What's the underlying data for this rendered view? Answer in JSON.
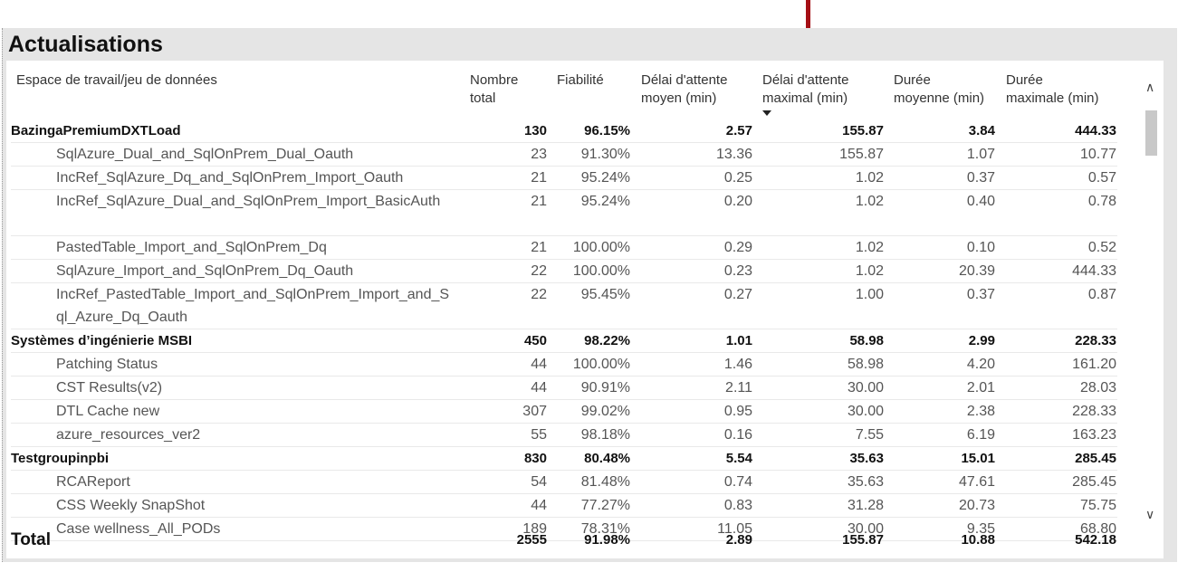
{
  "title": "Actualisations",
  "columns": {
    "name": "Espace de travail/jeu de données",
    "total_line1": "Nombre",
    "total_line2": "total",
    "reliability": "Fiabilité",
    "avg_wait_line1": "Délai d'attente",
    "avg_wait_line2": "moyen (min)",
    "max_wait_line1": "Délai d'attente",
    "max_wait_line2": "maximal (min)",
    "avg_dur_line1": "Durée",
    "avg_dur_line2": "moyenne (min)",
    "max_dur_line1": "Durée",
    "max_dur_line2": "maximale (min)"
  },
  "rows": [
    {
      "type": "group",
      "name": "BazingaPremiumDXTLoad",
      "total": "130",
      "reliability": "96.15%",
      "avg_wait": "2.57",
      "max_wait": "155.87",
      "avg_dur": "3.84",
      "max_dur": "444.33"
    },
    {
      "type": "sub",
      "name": "SqlAzure_Dual_and_SqlOnPrem_Dual_Oauth",
      "total": "23",
      "reliability": "91.30%",
      "avg_wait": "13.36",
      "max_wait": "155.87",
      "avg_dur": "1.07",
      "max_dur": "10.77"
    },
    {
      "type": "sub",
      "name": "IncRef_SqlAzure_Dq_and_SqlOnPrem_Import_Oauth",
      "total": "21",
      "reliability": "95.24%",
      "avg_wait": "0.25",
      "max_wait": "1.02",
      "avg_dur": "0.37",
      "max_dur": "0.57"
    },
    {
      "type": "sub",
      "name": "IncRef_SqlAzure_Dual_and_SqlOnPrem_Import_BasicAuth",
      "total": "21",
      "reliability": "95.24%",
      "avg_wait": "0.20",
      "max_wait": "1.02",
      "avg_dur": "0.40",
      "max_dur": "0.78",
      "h": 2
    },
    {
      "type": "sub",
      "name": "PastedTable_Import_and_SqlOnPrem_Dq",
      "total": "21",
      "reliability": "100.00%",
      "avg_wait": "0.29",
      "max_wait": "1.02",
      "avg_dur": "0.10",
      "max_dur": "0.52"
    },
    {
      "type": "sub",
      "name": "SqlAzure_Import_and_SqlOnPrem_Dq_Oauth",
      "total": "22",
      "reliability": "100.00%",
      "avg_wait": "0.23",
      "max_wait": "1.02",
      "avg_dur": "20.39",
      "max_dur": "444.33"
    },
    {
      "type": "sub",
      "name": "IncRef_PastedTable_Import_and_SqlOnPrem_Import_and_Sql_Azure_Dq_Oauth",
      "total": "22",
      "reliability": "95.45%",
      "avg_wait": "0.27",
      "max_wait": "1.00",
      "avg_dur": "0.37",
      "max_dur": "0.87",
      "h": 2
    },
    {
      "type": "group",
      "name": "Systèmes d’ingénierie MSBI",
      "total": "450",
      "reliability": "98.22%",
      "avg_wait": "1.01",
      "max_wait": "58.98",
      "avg_dur": "2.99",
      "max_dur": "228.33"
    },
    {
      "type": "sub",
      "name": "Patching Status",
      "total": "44",
      "reliability": "100.00%",
      "avg_wait": "1.46",
      "max_wait": "58.98",
      "avg_dur": "4.20",
      "max_dur": "161.20"
    },
    {
      "type": "sub",
      "name": "CST Results(v2)",
      "total": "44",
      "reliability": "90.91%",
      "avg_wait": "2.11",
      "max_wait": "30.00",
      "avg_dur": "2.01",
      "max_dur": "28.03"
    },
    {
      "type": "sub",
      "name": "DTL Cache new",
      "total": "307",
      "reliability": "99.02%",
      "avg_wait": "0.95",
      "max_wait": "30.00",
      "avg_dur": "2.38",
      "max_dur": "228.33"
    },
    {
      "type": "sub",
      "name": "azure_resources_ver2",
      "total": "55",
      "reliability": "98.18%",
      "avg_wait": "0.16",
      "max_wait": "7.55",
      "avg_dur": "6.19",
      "max_dur": "163.23"
    },
    {
      "type": "group",
      "name": "Testgroupinpbi",
      "total": "830",
      "reliability": "80.48%",
      "avg_wait": "5.54",
      "max_wait": "35.63",
      "avg_dur": "15.01",
      "max_dur": "285.45"
    },
    {
      "type": "sub",
      "name": "RCAReport",
      "total": "54",
      "reliability": "81.48%",
      "avg_wait": "0.74",
      "max_wait": "35.63",
      "avg_dur": "47.61",
      "max_dur": "285.45"
    },
    {
      "type": "sub",
      "name": "CSS Weekly SnapShot",
      "total": "44",
      "reliability": "77.27%",
      "avg_wait": "0.83",
      "max_wait": "31.28",
      "avg_dur": "20.73",
      "max_dur": "75.75"
    },
    {
      "type": "sub",
      "name": "Case wellness_All_PODs",
      "total": "189",
      "reliability": "78.31%",
      "avg_wait": "11.05",
      "max_wait": "30.00",
      "avg_dur": "9.35",
      "max_dur": "68.80"
    }
  ],
  "total": {
    "name": "Total",
    "total": "2555",
    "reliability": "91.98%",
    "avg_wait": "2.89",
    "max_wait": "155.87",
    "avg_dur": "10.88",
    "max_dur": "542.18"
  },
  "scroll": {
    "up": "∧",
    "down": "∨"
  },
  "colors": {
    "accent": "#a50f15"
  }
}
